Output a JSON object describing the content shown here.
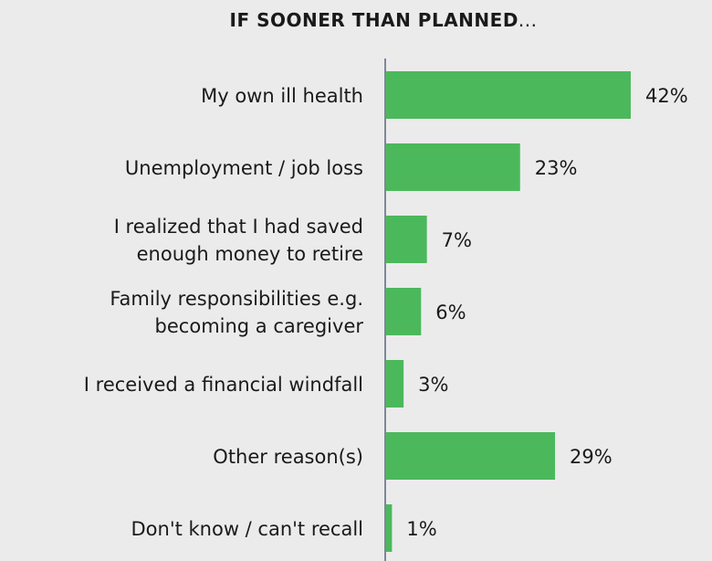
{
  "chart_data": {
    "type": "bar",
    "orientation": "horizontal",
    "title_bold": "IF SOONER THAN PLANNED",
    "title_suffix": "...",
    "categories": [
      [
        "My own ill health"
      ],
      [
        "Unemployment / job loss"
      ],
      [
        "I realized that I had saved",
        "enough money to retire"
      ],
      [
        "Family responsibilities e.g.",
        "becoming a caregiver"
      ],
      [
        "I received a financial windfall"
      ],
      [
        "Other reason(s)"
      ],
      [
        "Don't know / can't recall"
      ]
    ],
    "values": [
      42,
      23,
      7,
      6,
      3,
      29,
      1
    ],
    "value_labels": [
      "42%",
      "23%",
      "7%",
      "6%",
      "3%",
      "29%",
      "1%"
    ],
    "xlim": [
      0,
      45
    ],
    "bar_color": "#4cb85c",
    "axis_color": "#7f8799",
    "grid": false,
    "legend": "none"
  }
}
